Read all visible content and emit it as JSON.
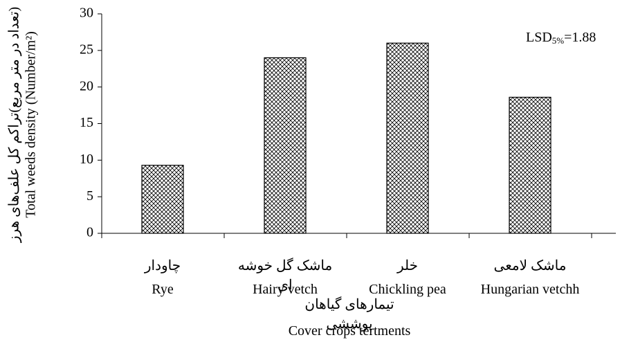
{
  "chart_data": {
    "type": "bar",
    "categories": [
      "Rye",
      "Hairy vetch",
      "Chickling pea",
      "Hungarian vetchh"
    ],
    "categories_fa": [
      "چاودار",
      "ماشک گل خوشه ای",
      "خلر",
      "ماشک لامعی"
    ],
    "values": [
      9.3,
      24,
      26,
      18.6
    ],
    "ylim": [
      0,
      30
    ],
    "yticks": [
      0,
      5,
      10,
      15,
      20,
      25,
      30
    ],
    "ylabel": "Total weeds density (Number/m²)",
    "ylabel_fa": "(تعداد در متر مربع)تراکم کل علف‌های هرز",
    "xlabel": "Cover crops tertments",
    "xlabel_fa": "تیمارهای گیاهان پوششی",
    "annotation": {
      "base": "LSD",
      "subscript": "5%",
      "rest": "=1.88"
    },
    "pattern": "crosshatch",
    "color": "#000000",
    "grid": false
  }
}
